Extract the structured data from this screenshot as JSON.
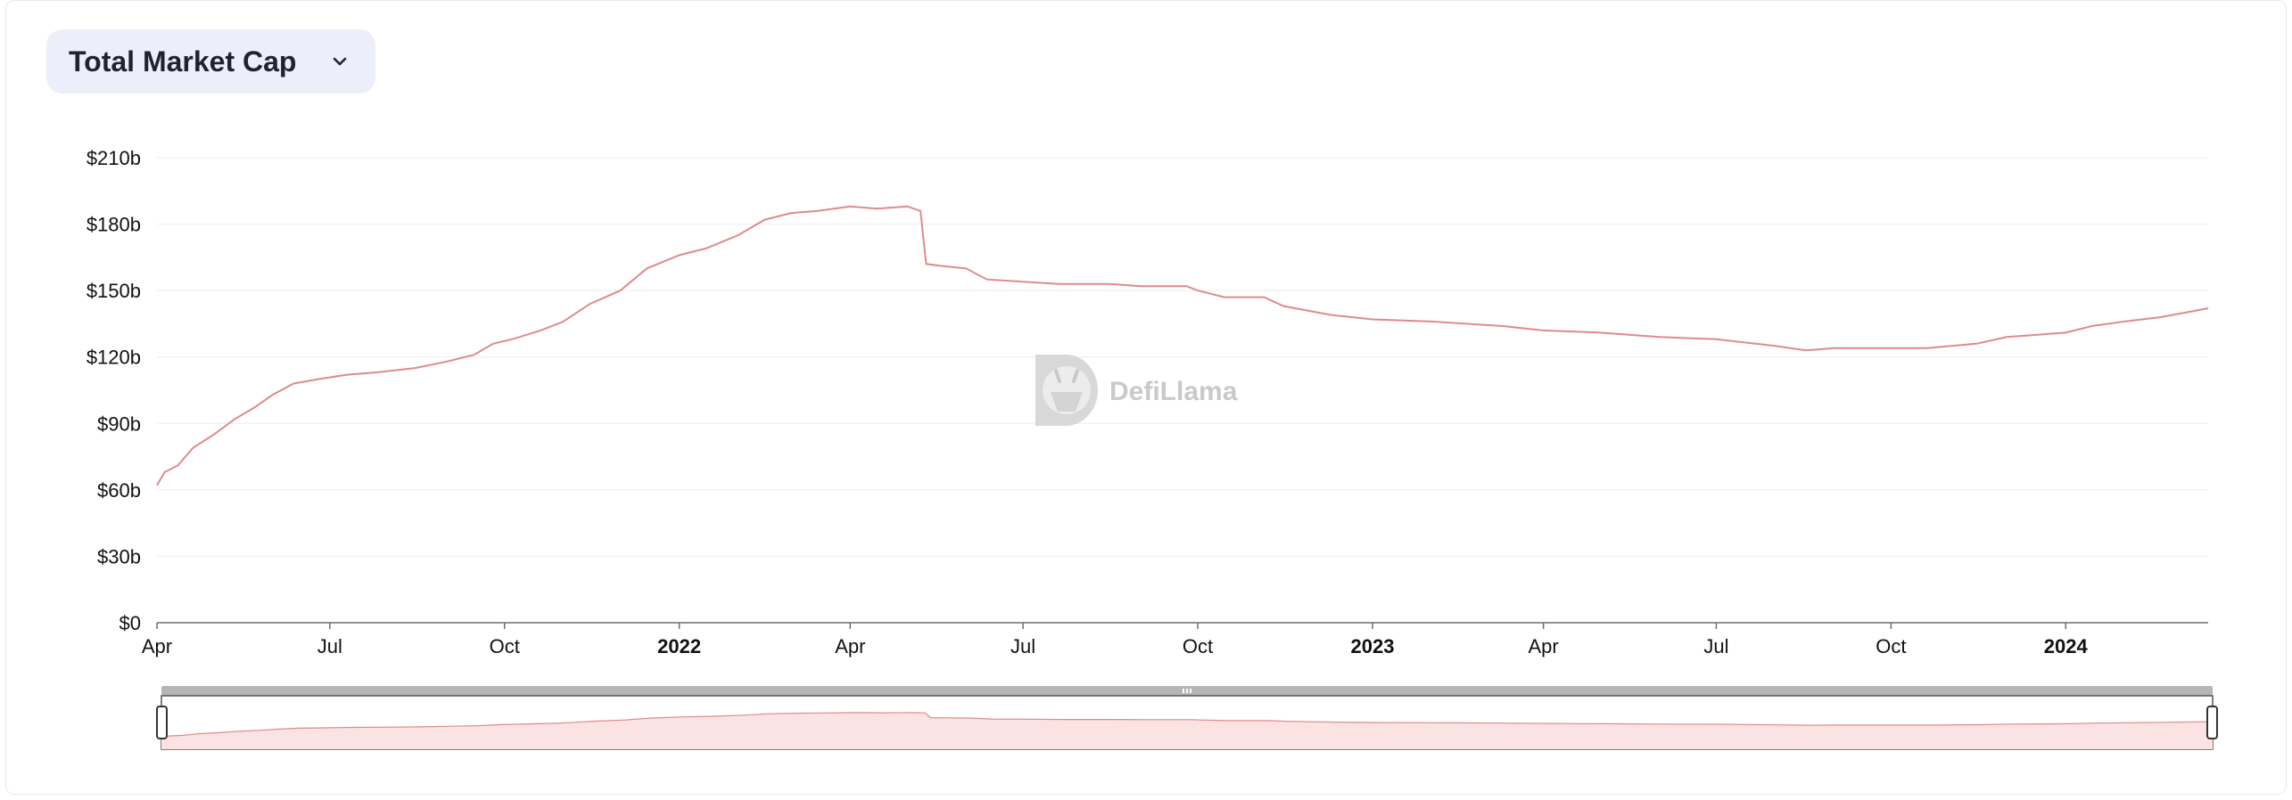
{
  "selector": {
    "label": "Total Market Cap",
    "icon": "chevron-down-icon"
  },
  "watermark": {
    "text": "DefiLlama"
  },
  "colors": {
    "line": "#e08a8a",
    "area": "#fbe3e3",
    "grid": "#eeeeee",
    "slider": "#b5b5b5"
  },
  "chart_data": {
    "type": "line",
    "title": "Total Market Cap",
    "xlabel": "",
    "ylabel": "",
    "ylim": [
      0,
      210
    ],
    "yunit": "billion USD",
    "ytick_labels": [
      "$0",
      "$30b",
      "$60b",
      "$90b",
      "$120b",
      "$150b",
      "$180b",
      "$210b"
    ],
    "xtick_labels": [
      "Apr",
      "Jul",
      "Oct",
      "2022",
      "Apr",
      "Jul",
      "Oct",
      "2023",
      "Apr",
      "Jul",
      "Oct",
      "2024"
    ],
    "xtick_dates": [
      "2021-04-01",
      "2021-07-01",
      "2021-10-01",
      "2022-01-01",
      "2022-04-01",
      "2022-07-01",
      "2022-10-01",
      "2023-01-01",
      "2023-04-01",
      "2023-07-01",
      "2023-10-01",
      "2024-01-01"
    ],
    "xlim": [
      "2021-04-01",
      "2024-03-16"
    ],
    "grid": true,
    "legend": "none",
    "series": [
      {
        "values": [
          [
            "2021-04-01",
            62
          ],
          [
            "2021-04-05",
            68
          ],
          [
            "2021-04-12",
            71
          ],
          [
            "2021-04-20",
            79
          ],
          [
            "2021-05-01",
            85
          ],
          [
            "2021-05-12",
            92
          ],
          [
            "2021-05-22",
            97
          ],
          [
            "2021-06-01",
            103
          ],
          [
            "2021-06-12",
            108
          ],
          [
            "2021-06-25",
            110
          ],
          [
            "2021-07-10",
            112
          ],
          [
            "2021-07-25",
            113
          ],
          [
            "2021-08-15",
            115
          ],
          [
            "2021-09-01",
            118
          ],
          [
            "2021-09-15",
            121
          ],
          [
            "2021-09-25",
            126
          ],
          [
            "2021-10-05",
            128
          ],
          [
            "2021-10-20",
            132
          ],
          [
            "2021-11-01",
            136
          ],
          [
            "2021-11-15",
            144
          ],
          [
            "2021-12-01",
            150
          ],
          [
            "2021-12-15",
            160
          ],
          [
            "2022-01-01",
            166
          ],
          [
            "2022-01-15",
            169
          ],
          [
            "2022-02-01",
            175
          ],
          [
            "2022-02-15",
            182
          ],
          [
            "2022-03-01",
            185
          ],
          [
            "2022-03-15",
            186
          ],
          [
            "2022-04-01",
            188
          ],
          [
            "2022-04-15",
            187
          ],
          [
            "2022-05-01",
            188
          ],
          [
            "2022-05-08",
            186
          ],
          [
            "2022-05-11",
            162
          ],
          [
            "2022-05-20",
            161
          ],
          [
            "2022-06-01",
            160
          ],
          [
            "2022-06-12",
            155
          ],
          [
            "2022-07-01",
            154
          ],
          [
            "2022-07-20",
            153
          ],
          [
            "2022-08-15",
            153
          ],
          [
            "2022-09-01",
            152
          ],
          [
            "2022-09-25",
            152
          ],
          [
            "2022-10-01",
            150
          ],
          [
            "2022-10-15",
            147
          ],
          [
            "2022-11-05",
            147
          ],
          [
            "2022-11-15",
            143
          ],
          [
            "2022-12-10",
            139
          ],
          [
            "2023-01-01",
            137
          ],
          [
            "2023-02-01",
            136
          ],
          [
            "2023-03-10",
            134
          ],
          [
            "2023-04-01",
            132
          ],
          [
            "2023-05-01",
            131
          ],
          [
            "2023-06-01",
            129
          ],
          [
            "2023-07-01",
            128
          ],
          [
            "2023-08-01",
            125
          ],
          [
            "2023-08-17",
            123
          ],
          [
            "2023-09-01",
            124
          ],
          [
            "2023-10-01",
            124
          ],
          [
            "2023-10-20",
            124
          ],
          [
            "2023-11-15",
            126
          ],
          [
            "2023-12-01",
            129
          ],
          [
            "2024-01-01",
            131
          ],
          [
            "2024-01-15",
            134
          ],
          [
            "2024-02-01",
            136
          ],
          [
            "2024-02-20",
            138
          ],
          [
            "2024-03-10",
            141
          ],
          [
            "2024-03-16",
            142
          ]
        ]
      }
    ]
  }
}
